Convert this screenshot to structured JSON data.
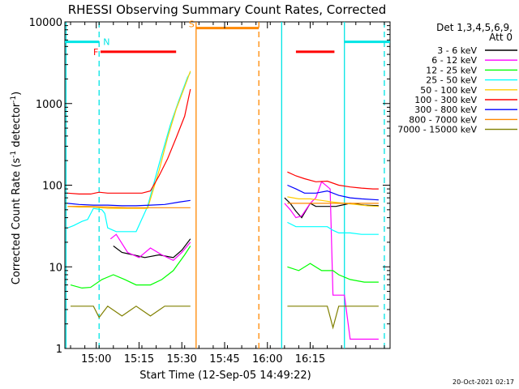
{
  "chart_data": {
    "type": "line",
    "title": "RHESSI Observing Summary Count Rates, Corrected",
    "xlabel": "Start Time (12-Sep-05 14:49:22)",
    "ylabel_main": "Corrected Count Rate (s",
    "ylabel_exp1": "-1",
    "ylabel_mid": " detector",
    "ylabel_exp2": "-1",
    "ylabel_end": ")",
    "yscale": "log",
    "ylim": [
      1,
      10000
    ],
    "xlim_min": [
      0,
      114
    ],
    "xticks": [
      {
        "min": 11,
        "label": "15:00"
      },
      {
        "min": 26,
        "label": "15:15"
      },
      {
        "min": 41,
        "label": "15:30"
      },
      {
        "min": 56,
        "label": "15:45"
      },
      {
        "min": 71,
        "label": "16:00"
      },
      {
        "min": 86,
        "label": "16:15"
      }
    ],
    "yticks": [
      {
        "value": 1,
        "label": "1"
      },
      {
        "value": 10,
        "label": "10"
      },
      {
        "value": 100,
        "label": "100"
      },
      {
        "value": 1000,
        "label": "1000"
      },
      {
        "value": 10000,
        "label": "10000"
      }
    ],
    "legend_header": [
      "Det 1,3,4,5,6,9,",
      "Att 0"
    ],
    "legend_position": "right",
    "series": [
      {
        "name": "3 - 6 keV",
        "color": "#000000",
        "x": [
          0,
          15,
          17,
          20,
          24,
          28,
          33,
          38,
          41,
          44,
          76,
          77,
          79,
          81,
          83,
          86,
          88,
          95,
          100,
          105,
          110,
          114
        ],
        "y": [
          null,
          null,
          18,
          15,
          14,
          13,
          14,
          13,
          16,
          22,
          null,
          70,
          60,
          48,
          40,
          60,
          55,
          55,
          60,
          57,
          56,
          null
        ]
      },
      {
        "name": "6 - 12 keV",
        "color": "#ff00ff",
        "x": [
          0,
          15,
          16,
          18,
          22,
          26,
          30,
          34,
          38,
          41,
          44,
          76,
          77,
          79,
          81,
          83,
          86,
          88,
          90,
          93,
          94,
          96,
          98,
          100,
          110,
          114
        ],
        "y": [
          null,
          null,
          22,
          25,
          15,
          13,
          17,
          14,
          12,
          15,
          20,
          null,
          60,
          50,
          40,
          42,
          60,
          70,
          110,
          90,
          4.5,
          4.5,
          4.5,
          1.3,
          1.3,
          null
        ]
      },
      {
        "name": "12 - 25 keV",
        "color": "#00ff00",
        "x": [
          0,
          2,
          6,
          9,
          13,
          17,
          21,
          25,
          30,
          34,
          38,
          42,
          44,
          76,
          78,
          82,
          86,
          90,
          94,
          96,
          100,
          105,
          110,
          114
        ],
        "y": [
          null,
          6,
          5.5,
          5.6,
          7,
          8,
          7,
          6,
          6,
          7,
          9,
          14,
          18,
          null,
          10,
          9,
          11,
          9,
          9,
          8,
          7,
          6.5,
          6.5,
          null
        ]
      },
      {
        "name": "25 - 50 keV",
        "color": "#00ffff",
        "x": [
          0,
          1,
          3,
          6,
          8,
          10,
          13,
          14,
          15,
          18,
          21,
          25,
          29,
          33,
          37,
          40,
          43,
          44,
          76,
          78,
          81,
          84,
          88,
          92,
          94,
          96,
          100,
          104,
          108,
          110,
          114
        ],
        "y": [
          null,
          30,
          32,
          36,
          38,
          52,
          50,
          45,
          30,
          27,
          27,
          27,
          55,
          180,
          550,
          1100,
          2100,
          2400,
          null,
          35,
          31,
          31,
          31,
          31,
          28,
          26,
          26,
          25,
          25,
          25,
          null
        ]
      },
      {
        "name": "50 - 100 keV",
        "color": "#ffcc00",
        "x": [
          0,
          1,
          5,
          10,
          15,
          20,
          25,
          29,
          33,
          36,
          39,
          42,
          44,
          76,
          78,
          82,
          86,
          90,
          94,
          98,
          102,
          106,
          110,
          114
        ],
        "y": [
          null,
          55,
          54,
          54,
          52,
          52,
          52,
          52,
          150,
          380,
          850,
          1600,
          2500,
          null,
          72,
          68,
          68,
          65,
          62,
          60,
          58,
          56,
          55,
          null
        ]
      },
      {
        "name": "100 - 300 keV",
        "color": "#ff0000",
        "x": [
          0,
          1,
          5,
          9,
          12,
          15,
          19,
          23,
          27,
          30,
          33,
          36,
          39,
          42,
          44,
          76,
          78,
          81,
          84,
          88,
          92,
          96,
          100,
          104,
          108,
          110,
          114
        ],
        "y": [
          null,
          80,
          78,
          78,
          82,
          80,
          80,
          80,
          80,
          85,
          130,
          210,
          380,
          700,
          1500,
          null,
          145,
          130,
          120,
          110,
          112,
          100,
          95,
          92,
          90,
          90,
          null
        ]
      },
      {
        "name": "300 - 800 keV",
        "color": "#0000ff",
        "x": [
          0,
          1,
          5,
          10,
          15,
          20,
          25,
          30,
          35,
          40,
          44,
          76,
          78,
          81,
          84,
          88,
          92,
          96,
          100,
          104,
          110,
          114
        ],
        "y": [
          null,
          60,
          58,
          57,
          57,
          56,
          56,
          57,
          58,
          62,
          65,
          null,
          100,
          90,
          80,
          80,
          85,
          75,
          70,
          68,
          66,
          null
        ]
      },
      {
        "name": "800 - 7000 keV",
        "color": "#ff8800",
        "x": [
          0,
          1,
          8,
          15,
          22,
          29,
          36,
          44,
          76,
          78,
          85,
          92,
          100,
          110,
          114
        ],
        "y": [
          null,
          55,
          55,
          54,
          53,
          53,
          53,
          53,
          null,
          60,
          60,
          60,
          60,
          60,
          null
        ]
      },
      {
        "name": "7000 - 15000 keV",
        "color": "#808000",
        "x": [
          0,
          2,
          6,
          10,
          12,
          15,
          20,
          25,
          30,
          35,
          40,
          44,
          76,
          78,
          82,
          88,
          92,
          94,
          96,
          100,
          106,
          110,
          114
        ],
        "y": [
          null,
          3.3,
          3.3,
          3.3,
          2.4,
          3.3,
          2.5,
          3.3,
          2.5,
          3.3,
          3.3,
          3.3,
          null,
          3.3,
          3.3,
          3.3,
          3.3,
          1.8,
          3.3,
          3.3,
          3.3,
          3.3,
          null
        ]
      }
    ],
    "flag_bars": [
      {
        "label": "N",
        "color": "#00e5e5",
        "x0": 0,
        "x1": 12,
        "y": 5700
      },
      {
        "label": "",
        "color": "#00e5e5",
        "x0": 98,
        "x1": 114,
        "y": 5700
      },
      {
        "label": "F",
        "color": "#ff0000",
        "x0": 12.5,
        "x1": 39,
        "y": 4300
      },
      {
        "label": "",
        "color": "#ff0000",
        "x0": 81,
        "x1": 94.5,
        "y": 4300
      },
      {
        "label": "S",
        "color": "#ff8800",
        "x0": 46,
        "x1": 68,
        "y": 8400
      }
    ],
    "vlines": [
      {
        "min": 0.4,
        "color": "#00e5e5",
        "style": "solid"
      },
      {
        "min": 12,
        "color": "#00e5e5",
        "style": "dashed"
      },
      {
        "min": 46,
        "color": "#ff8800",
        "style": "solid"
      },
      {
        "min": 68,
        "color": "#ff8800",
        "style": "dashed"
      },
      {
        "min": 76,
        "color": "#00e5e5",
        "style": "solid"
      },
      {
        "min": 98,
        "color": "#00e5e5",
        "style": "solid"
      },
      {
        "min": 112,
        "color": "#00e5e5",
        "style": "dashed"
      }
    ]
  },
  "footer_timestamp": "20-Oct-2021 02:17"
}
